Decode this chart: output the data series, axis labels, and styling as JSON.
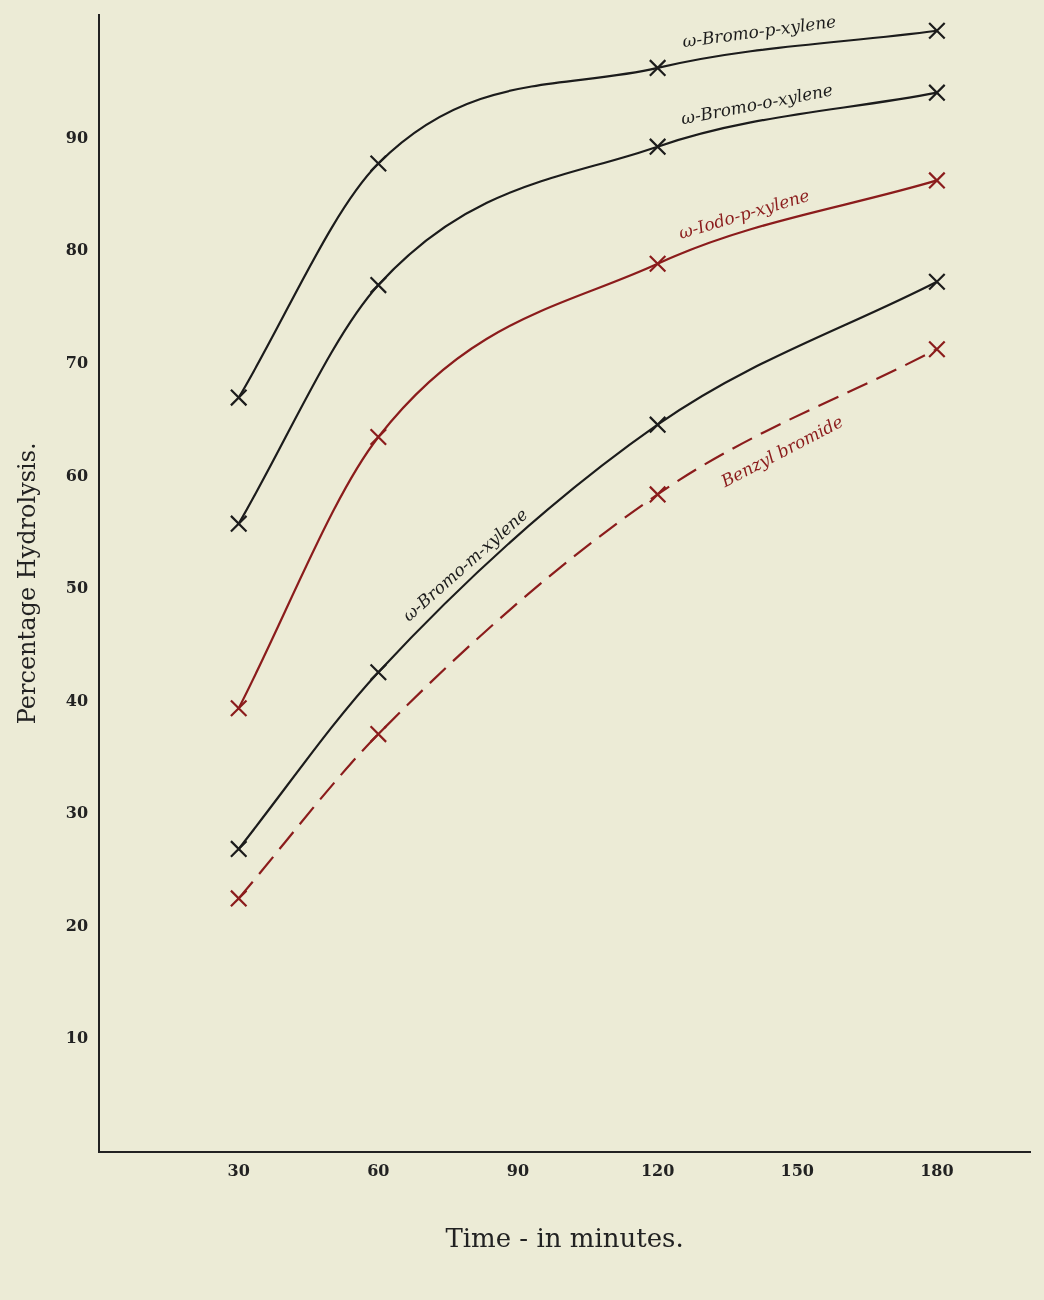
{
  "chart_data": {
    "type": "line",
    "xlabel": "Time - in minutes.",
    "ylabel": "Percentage Hydrolysis.",
    "xlim": [
      0,
      200
    ],
    "ylim": [
      0,
      101
    ],
    "xticks": [
      30,
      60,
      90,
      120,
      150,
      180
    ],
    "yticks": [
      10,
      20,
      30,
      40,
      50,
      60,
      70,
      80,
      90
    ],
    "grid": false,
    "legend": false,
    "marker": "cross",
    "series": [
      {
        "name": "ω-Bromo-p-xylene",
        "color": "#1c1c1c",
        "line_style": "solid",
        "x": [
          30,
          60,
          120,
          180
        ],
        "values": [
          67.0,
          87.8,
          96.3,
          99.6
        ]
      },
      {
        "name": "ω-Bromo-o-xylene",
        "color": "#1c1c1c",
        "line_style": "solid",
        "x": [
          30,
          60,
          120,
          180
        ],
        "values": [
          55.8,
          77.0,
          89.3,
          94.1
        ]
      },
      {
        "name": "ω-Iodo-p-xylene",
        "color": "#8b1c1c",
        "line_style": "solid",
        "x": [
          30,
          60,
          120,
          180
        ],
        "values": [
          39.4,
          63.5,
          78.9,
          86.3
        ]
      },
      {
        "name": "ω-Bromo-m-xylene",
        "color": "#1c1c1c",
        "line_style": "solid",
        "x": [
          30,
          60,
          120,
          180
        ],
        "values": [
          26.9,
          42.6,
          64.6,
          77.3
        ]
      },
      {
        "name": "Benzyl bromide",
        "color": "#8b1c1c",
        "line_style": "dashed",
        "x": [
          30,
          60,
          120,
          180
        ],
        "values": [
          22.5,
          37.1,
          58.4,
          71.3
        ]
      }
    ]
  }
}
